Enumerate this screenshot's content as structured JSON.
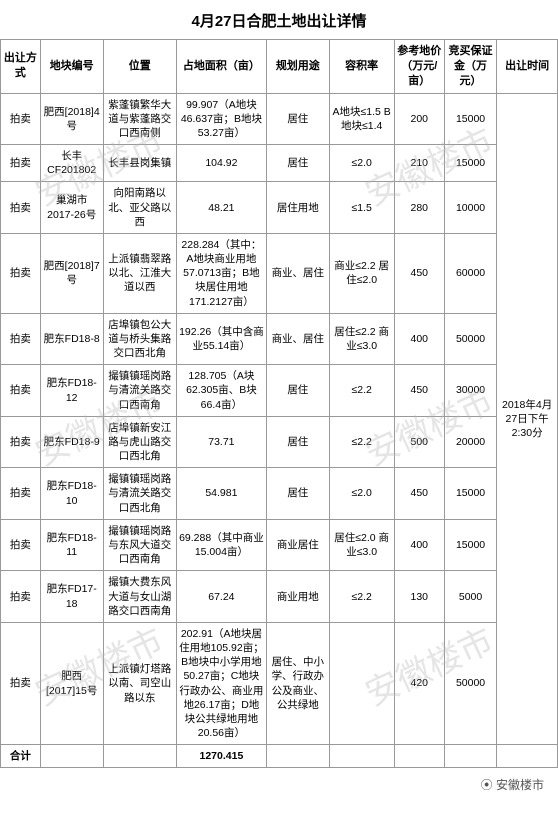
{
  "title": "4月27日合肥土地出让详情",
  "header": {
    "method": "出让方式",
    "lot": "地块编号",
    "location": "位置",
    "area": "占地面积（亩）",
    "use": "规划用途",
    "far": "容积率",
    "price": "参考地价（万元/亩）",
    "deposit": "竞买保证金（万元）",
    "time": "出让时间"
  },
  "rows": [
    {
      "method": "拍卖",
      "lot": "肥西[2018]4号",
      "location": "紫蓬镇繁华大道与紫蓬路交口西南侧",
      "area": "99.907（A地块46.637亩；B地块53.27亩）",
      "use": "居住",
      "far": "A地块≤1.5 B地块≤1.4",
      "price": "200",
      "deposit": "15000"
    },
    {
      "method": "拍卖",
      "lot": "长丰CF201802",
      "location": "长丰县岗集镇",
      "area": "104.92",
      "use": "居住",
      "far": "≤2.0",
      "price": "210",
      "deposit": "15000"
    },
    {
      "method": "拍卖",
      "lot": "巢湖市2017-26号",
      "location": "向阳南路以北、亚父路以西",
      "area": "48.21",
      "use": "居住用地",
      "far": "≤1.5",
      "price": "280",
      "deposit": "10000"
    },
    {
      "method": "拍卖",
      "lot": "肥西[2018]7号",
      "location": "上派镇翡翠路以北、江淮大道以西",
      "area": "228.284（其中：A地块商业用地57.0713亩；B地块居住用地171.2127亩）",
      "use": "商业、居住",
      "far": "商业≤2.2 居住≤2.0",
      "price": "450",
      "deposit": "60000"
    },
    {
      "method": "拍卖",
      "lot": "肥东FD18-8",
      "location": "店埠镇包公大道与桥头集路交口西北角",
      "area": "192.26（其中含商业55.14亩）",
      "use": "商业、居住",
      "far": "居住≤2.2 商业≤3.0",
      "price": "400",
      "deposit": "50000"
    },
    {
      "method": "拍卖",
      "lot": "肥东FD18-12",
      "location": "撮镇镇瑶岗路与清流关路交口西南角",
      "area": "128.705（A块62.305亩、B块66.4亩）",
      "use": "居住",
      "far": "≤2.2",
      "price": "450",
      "deposit": "30000"
    },
    {
      "method": "拍卖",
      "lot": "肥东FD18-9",
      "location": "店埠镇新安江路与虎山路交口西北角",
      "area": "73.71",
      "use": "居住",
      "far": "≤2.2",
      "price": "500",
      "deposit": "20000"
    },
    {
      "method": "拍卖",
      "lot": "肥东FD18-10",
      "location": "撮镇镇瑶岗路与清流关路交口西北角",
      "area": "54.981",
      "use": "居住",
      "far": "≤2.0",
      "price": "450",
      "deposit": "15000"
    },
    {
      "method": "拍卖",
      "lot": "肥东FD18-11",
      "location": "撮镇镇瑶岗路与东风大道交口西南角",
      "area": "69.288（其中商业15.004亩）",
      "use": "商业居住",
      "far": "居住≤2.0 商业≤3.0",
      "price": "400",
      "deposit": "15000"
    },
    {
      "method": "拍卖",
      "lot": "肥东FD17-18",
      "location": "撮镇大费东风大道与女山湖路交口西南角",
      "area": "67.24",
      "use": "商业用地",
      "far": "≤2.2",
      "price": "130",
      "deposit": "5000"
    },
    {
      "method": "拍卖",
      "lot": "肥西[2017]15号",
      "location": "上派镇灯塔路以南、司空山路以东",
      "area": "202.91（A地块居住用地105.92亩；B地块中小学用地50.27亩；C地块行政办公、商业用地26.17亩；D地块公共绿地用地20.56亩）",
      "use": "居住、中小学、行政办公及商业、公共绿地",
      "far": "",
      "price": "420",
      "deposit": "50000"
    }
  ],
  "time_cell": "2018年4月27日下午2:30分",
  "total": {
    "label": "合计",
    "area": "1270.415"
  },
  "footer": "安徽楼市",
  "watermark": "安徽楼市",
  "colors": {
    "border": "#999999",
    "text": "#000000"
  }
}
